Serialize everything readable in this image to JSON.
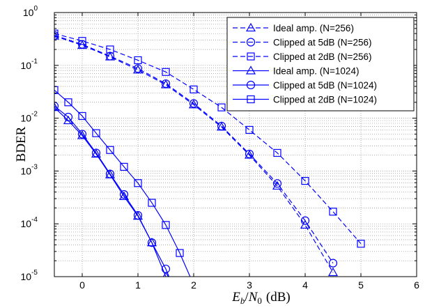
{
  "chart_data": {
    "type": "line",
    "xlabel": "E_b/N_0 (dB)",
    "xlabel_parts": {
      "e": "E",
      "b": "b",
      "slash": "/",
      "n": "N",
      "zero": "0",
      "unit": "(dB)"
    },
    "ylabel": "BDER",
    "xlim": [
      -0.5,
      6
    ],
    "ylim": [
      1e-05,
      1
    ],
    "yscale": "log",
    "grid": true,
    "legend_position": "top-right",
    "color": "#0000ff",
    "x_ticks": [
      {
        "value": 0,
        "label": "0"
      },
      {
        "value": 1,
        "label": "1"
      },
      {
        "value": 2,
        "label": "2"
      },
      {
        "value": 3,
        "label": "3"
      },
      {
        "value": 4,
        "label": "4"
      },
      {
        "value": 5,
        "label": "5"
      },
      {
        "value": 6,
        "label": "6"
      }
    ],
    "y_ticks": [
      {
        "value": 1,
        "base": "10",
        "exp": "0"
      },
      {
        "value": 0.1,
        "base": "10",
        "exp": "-1"
      },
      {
        "value": 0.01,
        "base": "10",
        "exp": "-2"
      },
      {
        "value": 0.001,
        "base": "10",
        "exp": "-3"
      },
      {
        "value": 0.0001,
        "base": "10",
        "exp": "-4"
      },
      {
        "value": 1e-05,
        "base": "10",
        "exp": "-5"
      }
    ],
    "series": [
      {
        "name": "Ideal amp. (N=256)",
        "marker": "triangle",
        "dash": true,
        "x": [
          -0.5,
          0,
          0.5,
          1,
          1.5,
          2,
          2.5,
          3,
          3.5,
          4,
          4.5
        ],
        "y": [
          0.36,
          0.24,
          0.145,
          0.082,
          0.043,
          0.018,
          0.0068,
          0.002,
          0.00052,
          9.5e-05,
          1.2e-05
        ]
      },
      {
        "name": "Clipped at 5dB (N=256)",
        "marker": "circle",
        "dash": true,
        "x": [
          -0.5,
          0,
          0.5,
          1,
          1.5,
          2,
          2.5,
          3,
          3.5,
          4,
          4.5
        ],
        "y": [
          0.37,
          0.25,
          0.15,
          0.087,
          0.045,
          0.019,
          0.0071,
          0.0021,
          0.00058,
          0.000115,
          1.8e-05
        ]
      },
      {
        "name": "Clipped at 2dB (N=256)",
        "marker": "square",
        "dash": true,
        "x": [
          -0.5,
          0,
          0.5,
          1,
          1.5,
          2,
          2.5,
          3,
          3.5,
          4,
          4.5,
          5
        ],
        "y": [
          0.4,
          0.29,
          0.2,
          0.125,
          0.075,
          0.035,
          0.016,
          0.006,
          0.0022,
          0.00065,
          0.00017,
          4.2e-05
        ]
      },
      {
        "name": "Ideal amp. (N=1024)",
        "marker": "triangle",
        "dash": false,
        "x": [
          -0.5,
          -0.25,
          0,
          0.25,
          0.5,
          0.75,
          1,
          1.25,
          1.5,
          1.75
        ],
        "y": [
          0.016,
          0.009,
          0.0047,
          0.0021,
          0.00085,
          0.00033,
          0.00014,
          4.4e-05,
          1e-05,
          2.2e-06
        ]
      },
      {
        "name": "Clipped at 5dB (N=1024)",
        "marker": "circle",
        "dash": false,
        "x": [
          -0.5,
          -0.25,
          0,
          0.25,
          0.5,
          0.75,
          1,
          1.25,
          1.5,
          1.75
        ],
        "y": [
          0.017,
          0.0105,
          0.005,
          0.0022,
          0.00088,
          0.00036,
          0.000145,
          4.4e-05,
          1.4e-05,
          3.2e-06
        ]
      },
      {
        "name": "Clipped at 2dB (N=1024)",
        "marker": "square",
        "dash": false,
        "x": [
          -0.5,
          -0.25,
          0,
          0.25,
          0.5,
          0.75,
          1,
          1.25,
          1.5,
          1.75,
          2
        ],
        "y": [
          0.034,
          0.02,
          0.011,
          0.0052,
          0.0025,
          0.0012,
          0.00059,
          0.00025,
          9.5e-05,
          2.8e-05,
          7e-06
        ]
      }
    ]
  }
}
